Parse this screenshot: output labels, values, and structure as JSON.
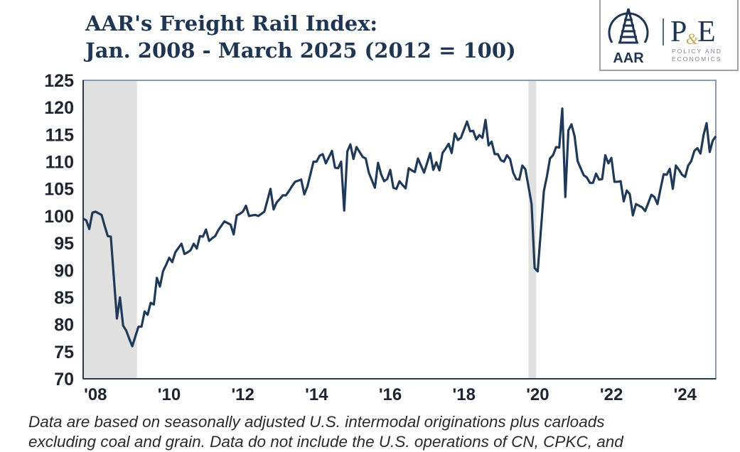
{
  "header": {
    "title_line1": "AAR's Freight Rail Index:",
    "title_line2": "Jan. 2008 - March 2025 (2012 = 100)"
  },
  "logo": {
    "left_text": "AAR",
    "right_text": "P&E",
    "right_subtext_1": "POLICY AND",
    "right_subtext_2": "ECONOMICS"
  },
  "footnote": {
    "line1": "Data are based on seasonally adjusted U.S. intermodal originations plus carloads",
    "line2": "excluding coal and grain. Data do not include the U.S. operations of CN, CPKC, and"
  },
  "colors": {
    "line": "#1f3a58",
    "recession_shading": "#e0e0e0",
    "title": "#1e3553"
  },
  "chart_data": {
    "type": "line",
    "title": "AAR's Freight Rail Index: Jan. 2008 - March 2025 (2012 = 100)",
    "x_start": "2008-01",
    "x_end": "2025-03",
    "frequency": "monthly",
    "ylim": [
      70,
      125
    ],
    "yticks": [
      "125",
      "120",
      "115",
      "110",
      "105",
      "100",
      "95",
      "90",
      "85",
      "80",
      "75",
      "70"
    ],
    "ytick_values": [
      125,
      120,
      115,
      110,
      105,
      100,
      95,
      90,
      85,
      80,
      75,
      70
    ],
    "xticks": [
      "'08",
      "'10",
      "'12",
      "'14",
      "'16",
      "'18",
      "'20",
      "'22",
      "'24"
    ],
    "xtick_years": [
      2008,
      2010,
      2012,
      2014,
      2016,
      2018,
      2020,
      2022,
      2024
    ],
    "grid": false,
    "shaded_periods": [
      {
        "start": "2008-01",
        "end": "2009-06"
      },
      {
        "start": "2020-02",
        "end": "2020-04"
      }
    ],
    "series": [
      {
        "values": [
          99.5,
          99.2,
          97.6,
          100.6,
          100.8,
          100.5,
          100.2,
          98.2,
          96.3,
          96.2,
          88.6,
          81.1,
          85.0,
          79.8,
          78.9,
          77.4,
          76.0,
          77.8,
          79.6,
          79.6,
          82.4,
          81.8,
          84.0,
          83.7,
          88.6,
          87.0,
          89.8,
          91.0,
          92.3,
          91.5,
          93.3,
          94.1,
          94.9,
          93.0,
          93.3,
          93.7,
          94.9,
          94.0,
          96.3,
          96.2,
          97.5,
          95.4,
          95.9,
          96.3,
          97.4,
          98.2,
          99.0,
          98.7,
          98.4,
          96.6,
          100.1,
          100.4,
          100.8,
          101.9,
          100.0,
          100.1,
          100.2,
          100.0,
          100.4,
          100.8,
          102.9,
          105.0,
          101.2,
          102.5,
          103.1,
          103.8,
          103.8,
          104.6,
          105.5,
          106.3,
          106.5,
          106.7,
          104.0,
          105.4,
          107.7,
          110.0,
          110.0,
          111.1,
          111.4,
          109.7,
          110.8,
          112.0,
          108.9,
          108.8,
          110.0,
          101.0,
          111.9,
          113.2,
          110.5,
          112.7,
          111.8,
          110.9,
          110.6,
          108.0,
          106.6,
          105.2,
          109.8,
          107.7,
          106.4,
          106.8,
          108.5,
          105.2,
          105.0,
          106.4,
          105.7,
          105.1,
          108.8,
          108.4,
          108.1,
          110.6,
          109.3,
          108.0,
          109.8,
          111.6,
          108.5,
          109.9,
          108.4,
          111.6,
          112.4,
          113.3,
          111.6,
          115.2,
          114.0,
          114.4,
          115.9,
          117.4,
          115.6,
          115.7,
          114.1,
          114.9,
          114.4,
          117.7,
          113.0,
          113.7,
          111.4,
          111.4,
          110.3,
          110.0,
          111.2,
          110.5,
          108.0,
          106.8,
          106.7,
          109.3,
          108.6,
          105.4,
          102.2,
          90.4,
          89.8,
          97.0,
          104.6,
          107.3,
          110.6,
          111.2,
          112.7,
          112.6,
          119.8,
          103.5,
          115.8,
          116.9,
          114.7,
          110.1,
          108.8,
          107.5,
          107.1,
          106.1,
          106.1,
          107.8,
          106.7,
          106.8,
          111.2,
          109.7,
          110.7,
          106.3,
          106.3,
          106.4,
          102.7,
          104.7,
          104.0,
          100.1,
          102.2,
          101.9,
          101.6,
          100.9,
          102.4,
          103.9,
          103.5,
          102.2,
          105.0,
          107.7,
          107.6,
          108.7,
          105.0,
          109.3,
          108.5,
          107.6,
          107.2,
          109.3,
          110.1,
          112.0,
          112.5,
          111.5,
          114.9,
          117.1,
          111.8,
          113.9,
          114.7
        ]
      }
    ]
  }
}
